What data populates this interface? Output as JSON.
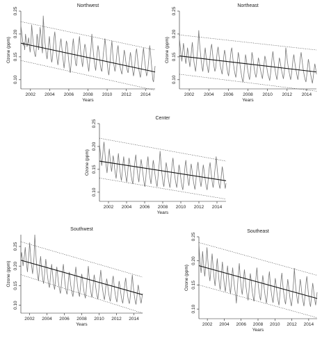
{
  "chart_data": [
    {
      "type": "line",
      "title": "Northwest",
      "xlabel": "Years",
      "ylabel": "Ozone (ppm)",
      "xlim": [
        2001,
        2015
      ],
      "ylim": [
        0.08,
        0.25
      ],
      "x_ticks": [
        2002,
        2004,
        2006,
        2008,
        2010,
        2012,
        2014
      ],
      "y_ticks": [
        0.1,
        0.15,
        0.2,
        0.25
      ],
      "y_tick_labels": [
        "0.10",
        "0.15",
        "0.20",
        "0.25"
      ],
      "trend": {
        "x": [
          2001,
          2015
        ],
        "y": [
          0.18,
          0.117
        ]
      },
      "upper_band": {
        "x": [
          2001,
          2015
        ],
        "y": [
          0.227,
          0.165
        ]
      },
      "lower_band": {
        "x": [
          2001,
          2015
        ],
        "y": [
          0.142,
          0.077
        ]
      },
      "series_y": [
        0.218,
        0.205,
        0.19,
        0.175,
        0.182,
        0.165,
        0.2,
        0.187,
        0.172,
        0.18,
        0.192,
        0.175,
        0.16,
        0.178,
        0.22,
        0.2,
        0.182,
        0.165,
        0.155,
        0.15,
        0.168,
        0.2,
        0.185,
        0.165,
        0.19,
        0.215,
        0.198,
        0.175,
        0.158,
        0.24,
        0.21,
        0.185,
        0.17,
        0.155,
        0.145,
        0.162,
        0.18,
        0.195,
        0.17,
        0.15,
        0.138,
        0.148,
        0.17,
        0.192,
        0.205,
        0.185,
        0.16,
        0.145,
        0.132,
        0.145,
        0.165,
        0.18,
        0.19,
        0.172,
        0.155,
        0.14,
        0.125,
        0.14,
        0.165,
        0.185,
        0.178,
        0.16,
        0.142,
        0.128,
        0.115,
        0.132,
        0.155,
        0.175,
        0.19,
        0.17,
        0.15,
        0.135,
        0.13,
        0.148,
        0.165,
        0.18,
        0.195,
        0.172,
        0.152,
        0.14,
        0.128,
        0.145,
        0.165,
        0.178,
        0.17,
        0.155,
        0.14,
        0.13,
        0.118,
        0.135,
        0.155,
        0.172,
        0.2,
        0.178,
        0.16,
        0.142,
        0.13,
        0.12,
        0.138,
        0.16,
        0.175,
        0.165,
        0.148,
        0.132,
        0.122,
        0.118,
        0.138,
        0.158,
        0.172,
        0.19,
        0.175,
        0.15,
        0.135,
        0.12,
        0.11,
        0.125,
        0.148,
        0.168,
        0.185,
        0.16,
        0.14,
        0.128,
        0.118,
        0.13,
        0.15,
        0.165,
        0.175,
        0.155,
        0.138,
        0.125,
        0.118,
        0.112,
        0.128,
        0.148,
        0.165,
        0.155,
        0.14,
        0.128,
        0.12,
        0.115,
        0.13,
        0.145,
        0.16,
        0.148,
        0.132,
        0.12,
        0.108,
        0.118,
        0.14,
        0.158,
        0.168,
        0.152,
        0.135,
        0.122,
        0.112,
        0.105,
        0.12,
        0.14,
        0.155,
        0.17,
        0.15,
        0.135,
        0.12,
        0.108,
        0.115,
        0.13,
        0.148,
        0.175,
        0.16,
        0.14,
        0.12,
        0.1,
        0.095,
        0.115,
        0.13
      ]
    },
    {
      "type": "line",
      "title": "Northeast",
      "xlabel": "Years",
      "ylabel": "Ozone (ppm)",
      "xlim": [
        2001,
        2015
      ],
      "ylim": [
        0.08,
        0.25
      ],
      "x_ticks": [
        2002,
        2004,
        2006,
        2008,
        2010,
        2012,
        2014
      ],
      "y_ticks": [
        0.1,
        0.15,
        0.2,
        0.25
      ],
      "y_tick_labels": [
        "0.10",
        "0.15",
        "0.20",
        "0.25"
      ],
      "trend": {
        "x": [
          2001,
          2015
        ],
        "y": [
          0.152,
          0.117
        ]
      },
      "upper_band": {
        "x": [
          2001,
          2015
        ],
        "y": [
          0.198,
          0.165
        ]
      },
      "lower_band": {
        "x": [
          2001,
          2015
        ],
        "y": [
          0.112,
          0.075
        ]
      },
      "series_y": [
        0.19,
        0.172,
        0.155,
        0.14,
        0.16,
        0.18,
        0.165,
        0.148,
        0.135,
        0.15,
        0.17,
        0.158,
        0.14,
        0.128,
        0.145,
        0.165,
        0.182,
        0.16,
        0.14,
        0.128,
        0.118,
        0.135,
        0.155,
        0.172,
        0.208,
        0.18,
        0.16,
        0.142,
        0.128,
        0.118,
        0.135,
        0.155,
        0.17,
        0.152,
        0.135,
        0.125,
        0.115,
        0.13,
        0.15,
        0.168,
        0.178,
        0.16,
        0.142,
        0.128,
        0.118,
        0.125,
        0.145,
        0.162,
        0.172,
        0.155,
        0.14,
        0.128,
        0.12,
        0.112,
        0.13,
        0.15,
        0.165,
        0.155,
        0.138,
        0.125,
        0.115,
        0.108,
        0.125,
        0.145,
        0.162,
        0.17,
        0.152,
        0.135,
        0.122,
        0.112,
        0.105,
        0.12,
        0.14,
        0.16,
        0.15,
        0.135,
        0.122,
        0.11,
        0.1,
        0.095,
        0.112,
        0.13,
        0.155,
        0.145,
        0.13,
        0.118,
        0.108,
        0.1,
        0.115,
        0.135,
        0.16,
        0.15,
        0.135,
        0.122,
        0.112,
        0.105,
        0.115,
        0.132,
        0.148,
        0.14,
        0.128,
        0.118,
        0.11,
        0.102,
        0.118,
        0.135,
        0.152,
        0.145,
        0.132,
        0.12,
        0.11,
        0.105,
        0.098,
        0.112,
        0.13,
        0.148,
        0.162,
        0.145,
        0.13,
        0.118,
        0.108,
        0.1,
        0.115,
        0.132,
        0.148,
        0.14,
        0.128,
        0.118,
        0.11,
        0.102,
        0.115,
        0.135,
        0.17,
        0.155,
        0.14,
        0.128,
        0.118,
        0.108,
        0.1,
        0.112,
        0.128,
        0.145,
        0.155,
        0.14,
        0.128,
        0.118,
        0.108,
        0.1,
        0.115,
        0.13,
        0.148,
        0.16,
        0.145,
        0.13,
        0.118,
        0.108,
        0.1,
        0.095,
        0.11,
        0.128,
        0.145,
        0.135,
        0.12,
        0.11,
        0.1,
        0.092,
        0.105,
        0.12,
        0.135,
        0.125,
        0.112
      ]
    },
    {
      "type": "line",
      "title": "Center",
      "xlabel": "Years",
      "ylabel": "Ozone (ppm)",
      "xlim": [
        2001,
        2015
      ],
      "ylim": [
        0.08,
        0.25
      ],
      "x_ticks": [
        2002,
        2004,
        2006,
        2008,
        2010,
        2012,
        2014
      ],
      "y_ticks": [
        0.1,
        0.15,
        0.2,
        0.25
      ],
      "y_tick_labels": [
        "0.10",
        "0.15",
        "0.20",
        "0.25"
      ],
      "trend": {
        "x": [
          2001,
          2015
        ],
        "y": [
          0.168,
          0.125
        ]
      },
      "upper_band": {
        "x": [
          2001,
          2015
        ],
        "y": [
          0.218,
          0.168
        ]
      },
      "lower_band": {
        "x": [
          2001,
          2015
        ],
        "y": [
          0.131,
          0.085
        ]
      },
      "series_y": [
        0.205,
        0.19,
        0.172,
        0.158,
        0.175,
        0.195,
        0.21,
        0.19,
        0.17,
        0.155,
        0.142,
        0.16,
        0.18,
        0.195,
        0.175,
        0.158,
        0.145,
        0.16,
        0.18,
        0.17,
        0.152,
        0.14,
        0.13,
        0.148,
        0.168,
        0.185,
        0.165,
        0.148,
        0.135,
        0.125,
        0.142,
        0.162,
        0.178,
        0.16,
        0.145,
        0.132,
        0.122,
        0.138,
        0.158,
        0.175,
        0.165,
        0.148,
        0.135,
        0.125,
        0.118,
        0.135,
        0.155,
        0.17,
        0.182,
        0.162,
        0.145,
        0.132,
        0.122,
        0.14,
        0.158,
        0.172,
        0.16,
        0.145,
        0.132,
        0.12,
        0.112,
        0.128,
        0.148,
        0.165,
        0.178,
        0.158,
        0.14,
        0.128,
        0.118,
        0.135,
        0.155,
        0.17,
        0.158,
        0.142,
        0.13,
        0.12,
        0.112,
        0.128,
        0.148,
        0.165,
        0.19,
        0.168,
        0.148,
        0.132,
        0.12,
        0.112,
        0.128,
        0.148,
        0.165,
        0.155,
        0.14,
        0.128,
        0.118,
        0.11,
        0.125,
        0.145,
        0.162,
        0.175,
        0.158,
        0.14,
        0.128,
        0.118,
        0.11,
        0.125,
        0.145,
        0.16,
        0.15,
        0.135,
        0.122,
        0.112,
        0.105,
        0.12,
        0.14,
        0.158,
        0.17,
        0.152,
        0.136,
        0.124,
        0.114,
        0.128,
        0.148,
        0.162,
        0.15,
        0.136,
        0.124,
        0.114,
        0.106,
        0.12,
        0.14,
        0.156,
        0.166,
        0.15,
        0.135,
        0.122,
        0.112,
        0.125,
        0.145,
        0.16,
        0.148,
        0.134,
        0.122,
        0.112,
        0.105,
        0.118,
        0.138,
        0.155,
        0.165,
        0.148,
        0.133,
        0.12,
        0.11,
        0.124,
        0.143,
        0.158,
        0.178,
        0.158,
        0.14,
        0.126,
        0.115,
        0.108,
        0.122,
        0.14,
        0.156,
        0.145,
        0.13,
        0.118,
        0.108,
        0.12
      ]
    },
    {
      "type": "line",
      "title": "Southwest",
      "xlabel": "Years",
      "ylabel": "Ozone (ppm)",
      "xlim": [
        2001,
        2015
      ],
      "ylim": [
        0.08,
        0.28
      ],
      "x_ticks": [
        2002,
        2004,
        2006,
        2008,
        2010,
        2012,
        2014
      ],
      "y_ticks": [
        0.1,
        0.15,
        0.2,
        0.25
      ],
      "y_tick_labels": [
        "0.10",
        "0.15",
        "0.20",
        "0.25"
      ],
      "trend": {
        "x": [
          2001,
          2015
        ],
        "y": [
          0.215,
          0.127
        ]
      },
      "upper_band": {
        "x": [
          2001,
          2015
        ],
        "y": [
          0.262,
          0.172
        ]
      },
      "lower_band": {
        "x": [
          2001,
          2015
        ],
        "y": [
          0.178,
          0.08
        ]
      },
      "series_y": [
        0.215,
        0.235,
        0.22,
        0.2,
        0.215,
        0.23,
        0.248,
        0.22,
        0.2,
        0.185,
        0.21,
        0.232,
        0.26,
        0.235,
        0.21,
        0.195,
        0.18,
        0.2,
        0.225,
        0.28,
        0.245,
        0.215,
        0.19,
        0.175,
        0.162,
        0.185,
        0.208,
        0.225,
        0.2,
        0.18,
        0.165,
        0.155,
        0.172,
        0.195,
        0.218,
        0.2,
        0.18,
        0.165,
        0.152,
        0.145,
        0.165,
        0.188,
        0.205,
        0.185,
        0.165,
        0.15,
        0.14,
        0.158,
        0.18,
        0.198,
        0.182,
        0.162,
        0.148,
        0.138,
        0.13,
        0.148,
        0.17,
        0.19,
        0.205,
        0.18,
        0.16,
        0.145,
        0.135,
        0.128,
        0.145,
        0.168,
        0.185,
        0.17,
        0.152,
        0.14,
        0.13,
        0.122,
        0.138,
        0.16,
        0.18,
        0.198,
        0.175,
        0.155,
        0.14,
        0.13,
        0.122,
        0.14,
        0.162,
        0.18,
        0.168,
        0.15,
        0.136,
        0.126,
        0.118,
        0.135,
        0.158,
        0.178,
        0.2,
        0.175,
        0.155,
        0.14,
        0.128,
        0.12,
        0.138,
        0.16,
        0.178,
        0.165,
        0.148,
        0.134,
        0.124,
        0.116,
        0.132,
        0.154,
        0.172,
        0.19,
        0.168,
        0.148,
        0.134,
        0.122,
        0.114,
        0.13,
        0.15,
        0.168,
        0.158,
        0.142,
        0.128,
        0.118,
        0.11,
        0.126,
        0.146,
        0.165,
        0.175,
        0.155,
        0.138,
        0.125,
        0.115,
        0.108,
        0.124,
        0.144,
        0.162,
        0.15,
        0.135,
        0.122,
        0.112,
        0.105,
        0.12,
        0.14,
        0.158,
        0.17,
        0.15,
        0.134,
        0.12,
        0.11,
        0.104,
        0.118,
        0.138,
        0.155,
        0.178,
        0.155,
        0.136,
        0.122,
        0.11,
        0.102,
        0.116,
        0.135,
        0.152,
        0.14,
        0.125,
        0.114,
        0.105,
        0.118,
        0.13
      ]
    },
    {
      "type": "line",
      "title": "Southeast",
      "xlabel": "Years",
      "ylabel": "Ozone (ppm)",
      "xlim": [
        2001,
        2015
      ],
      "ylim": [
        0.08,
        0.25
      ],
      "x_ticks": [
        2002,
        2004,
        2006,
        2008,
        2010,
        2012,
        2014
      ],
      "y_ticks": [
        0.1,
        0.15,
        0.2,
        0.25
      ],
      "y_tick_labels": [
        "0.10",
        "0.15",
        "0.20",
        "0.25"
      ],
      "trend": {
        "x": [
          2001,
          2015
        ],
        "y": [
          0.19,
          0.122
        ]
      },
      "upper_band": {
        "x": [
          2001,
          2015
        ],
        "y": [
          0.238,
          0.17
        ]
      },
      "lower_band": {
        "x": [
          2001,
          2015
        ],
        "y": [
          0.15,
          0.082
        ]
      },
      "series_y": [
        0.235,
        0.21,
        0.19,
        0.175,
        0.195,
        0.22,
        0.2,
        0.182,
        0.168,
        0.185,
        0.205,
        0.228,
        0.205,
        0.185,
        0.17,
        0.158,
        0.175,
        0.198,
        0.215,
        0.195,
        0.175,
        0.16,
        0.148,
        0.165,
        0.188,
        0.205,
        0.185,
        0.165,
        0.15,
        0.14,
        0.158,
        0.18,
        0.198,
        0.178,
        0.16,
        0.146,
        0.136,
        0.152,
        0.174,
        0.19,
        0.172,
        0.155,
        0.142,
        0.132,
        0.148,
        0.17,
        0.186,
        0.168,
        0.152,
        0.14,
        0.13,
        0.112,
        0.135,
        0.158,
        0.178,
        0.195,
        0.172,
        0.154,
        0.14,
        0.13,
        0.145,
        0.166,
        0.182,
        0.165,
        0.148,
        0.136,
        0.126,
        0.118,
        0.134,
        0.156,
        0.174,
        0.162,
        0.145,
        0.133,
        0.124,
        0.116,
        0.132,
        0.152,
        0.17,
        0.186,
        0.165,
        0.148,
        0.135,
        0.125,
        0.118,
        0.134,
        0.154,
        0.17,
        0.158,
        0.142,
        0.13,
        0.12,
        0.112,
        0.128,
        0.148,
        0.165,
        0.178,
        0.158,
        0.142,
        0.13,
        0.12,
        0.113,
        0.128,
        0.148,
        0.164,
        0.152,
        0.137,
        0.125,
        0.116,
        0.108,
        0.124,
        0.144,
        0.162,
        0.175,
        0.155,
        0.14,
        0.127,
        0.117,
        0.11,
        0.125,
        0.145,
        0.162,
        0.15,
        0.135,
        0.123,
        0.113,
        0.106,
        0.12,
        0.14,
        0.158,
        0.185,
        0.162,
        0.143,
        0.13,
        0.119,
        0.111,
        0.126,
        0.146,
        0.162,
        0.15,
        0.135,
        0.123,
        0.114,
        0.106,
        0.12,
        0.14,
        0.156,
        0.168,
        0.15,
        0.134,
        0.122,
        0.112,
        0.105,
        0.12,
        0.138,
        0.154,
        0.142,
        0.128,
        0.117,
        0.108,
        0.122,
        0.135
      ]
    }
  ]
}
